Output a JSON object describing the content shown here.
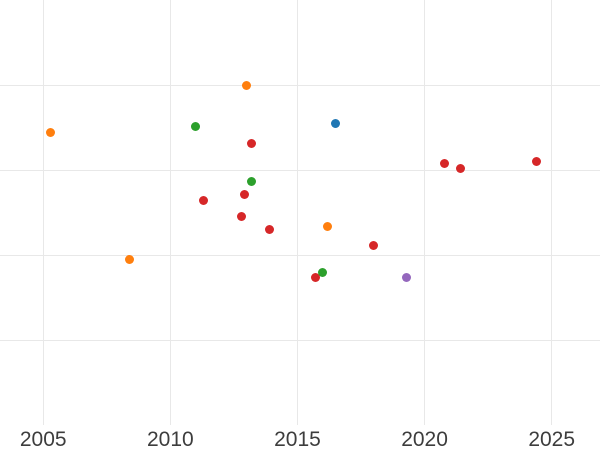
{
  "chart_data": {
    "type": "scatter",
    "title": "",
    "xlabel": "",
    "ylabel": "",
    "x_axis": {
      "tick_labels": [
        "2005",
        "2010",
        "2015",
        "2020",
        "2025"
      ],
      "tick_values": [
        2005,
        2010,
        2015,
        2020,
        2025
      ],
      "range": [
        2003.3,
        2026.9
      ],
      "grid": true
    },
    "y_axis": {
      "tick_labels": [],
      "labels_visible": false,
      "gridline_values": [
        1,
        2,
        3,
        4
      ],
      "range": [
        0,
        5
      ],
      "grid": true,
      "units": "unlabeled gridline units (1 unit per gridline, bottom edge = 0)"
    },
    "legend": {
      "visible": false
    },
    "colors": {
      "red": "#d62728",
      "orange": "#ff7f0e",
      "green": "#2ca02c",
      "blue": "#1f77b4",
      "purple": "#9467bd",
      "grid": "#e8e8e8",
      "tick_label": "#3d3d3d",
      "background": "#ffffff"
    },
    "series": [
      {
        "name": "red",
        "color": "#d62728",
        "points": [
          [
            2013.2,
            3.31
          ],
          [
            2012.9,
            2.71
          ],
          [
            2011.3,
            2.64
          ],
          [
            2012.8,
            2.45
          ],
          [
            2013.9,
            2.3
          ],
          [
            2018.0,
            2.11
          ],
          [
            2015.7,
            1.74
          ],
          [
            2020.8,
            3.08
          ],
          [
            2021.4,
            3.02
          ],
          [
            2024.4,
            3.1
          ]
        ]
      },
      {
        "name": "orange",
        "color": "#ff7f0e",
        "points": [
          [
            2005.3,
            3.44
          ],
          [
            2008.4,
            1.95
          ],
          [
            2013.0,
            4.0
          ],
          [
            2016.2,
            2.34
          ]
        ]
      },
      {
        "name": "green",
        "color": "#2ca02c",
        "points": [
          [
            2011.0,
            3.51
          ],
          [
            2013.2,
            2.86
          ],
          [
            2016.0,
            1.8
          ]
        ]
      },
      {
        "name": "blue",
        "color": "#1f77b4",
        "points": [
          [
            2016.5,
            3.55
          ]
        ]
      },
      {
        "name": "purple",
        "color": "#9467bd",
        "points": [
          [
            2019.3,
            1.74
          ]
        ]
      }
    ]
  }
}
